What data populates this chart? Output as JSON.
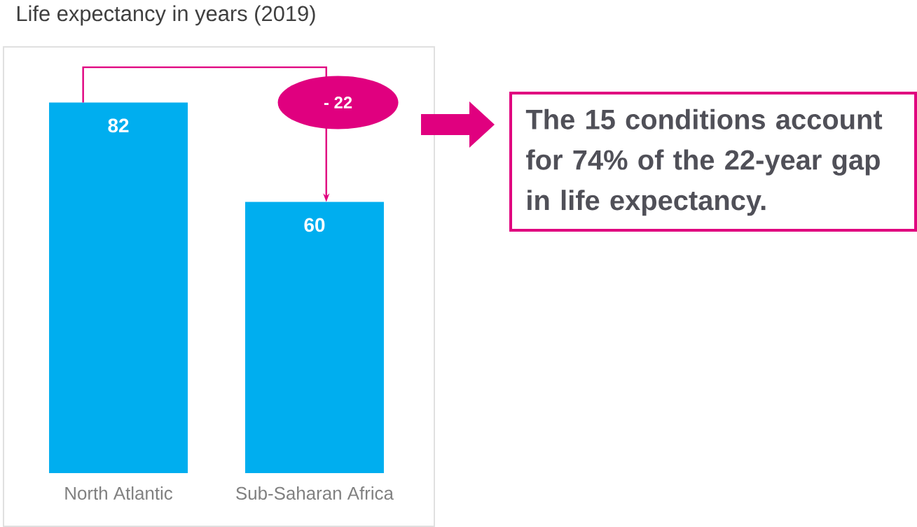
{
  "chart_data": {
    "type": "bar",
    "title": "Life expectancy in years (2019)",
    "categories": [
      "North Atlantic",
      "Sub-Saharan Africa"
    ],
    "values": [
      82,
      60
    ],
    "color": "#00aeef",
    "data_labels": true,
    "annotations": [
      "- 22",
      "The 15 conditions account for 74% of the 22-year gap in life expectancy."
    ]
  }
}
